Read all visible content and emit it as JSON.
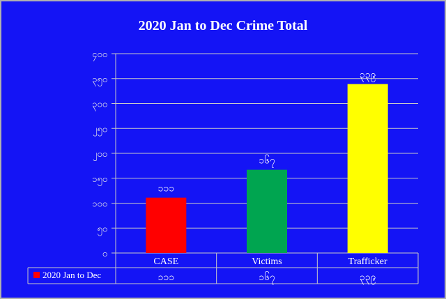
{
  "chart_data": {
    "type": "bar",
    "title": "2020  Jan to Dec Crime Total",
    "categories": [
      "CASE",
      "Victims",
      "Trafficker"
    ],
    "series": [
      {
        "name": "2020 Jan to Dec",
        "values": [
          111,
          167,
          339
        ],
        "value_labels": [
          "၁၁၁",
          "၁၆၇",
          "၃၃၉"
        ],
        "colors": [
          "#ff0000",
          "#00a550",
          "#ffff00"
        ]
      }
    ],
    "ylim": [
      0,
      400
    ],
    "yticks": [
      0,
      50,
      100,
      150,
      200,
      250,
      300,
      350,
      400
    ],
    "ytick_labels": [
      "၀",
      "၅၀",
      "၁၀၀",
      "၁၅၀",
      "၂၀၀",
      "၂၅၀",
      "၃၀၀",
      "၃၅၀",
      "၄၀၀"
    ],
    "grid": true,
    "legend": "data-table",
    "data_table": true,
    "background": "#1414f5"
  }
}
